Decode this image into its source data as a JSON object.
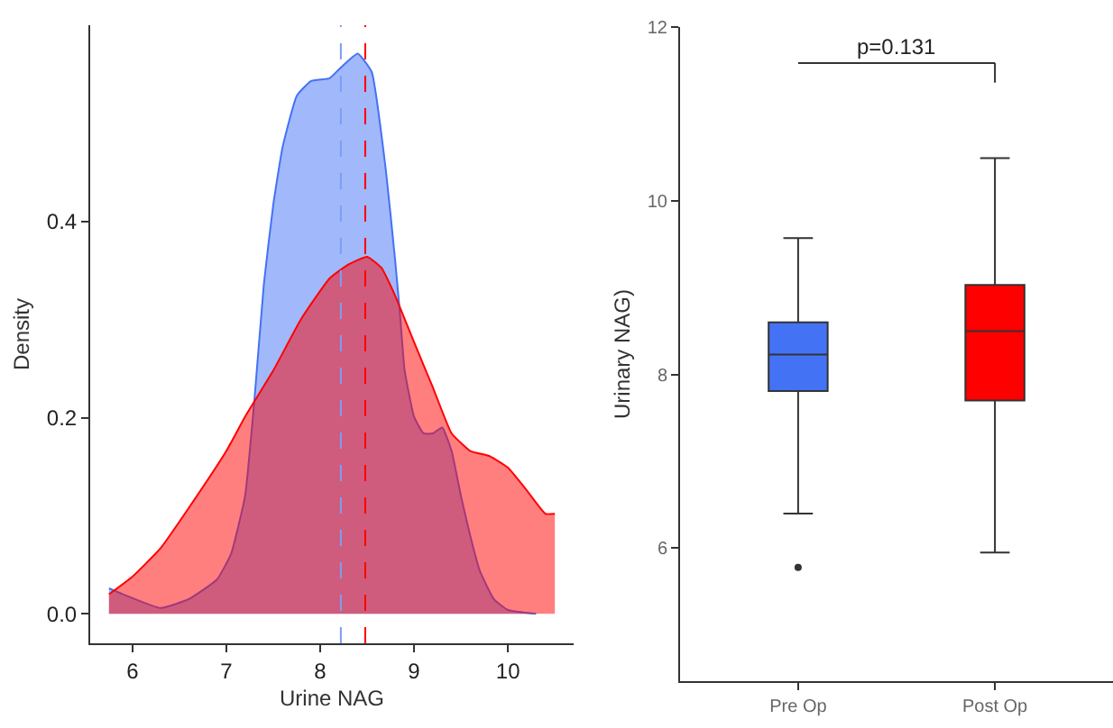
{
  "chart_data": [
    {
      "type": "area",
      "xlabel": "Urine NAG",
      "ylabel": "Density",
      "xlim": [
        5.55,
        10.7
      ],
      "xticks": [
        6,
        7,
        8,
        9,
        10
      ],
      "ylim": [
        -0.03,
        0.6
      ],
      "yticks": [
        {
          "value": 0,
          "label": "0.0"
        },
        0.2,
        0.4
      ],
      "series": [
        {
          "color": "#4472f5",
          "x": [
            5.75,
            5.9,
            6.3,
            6.6,
            6.9,
            7.05,
            7.2,
            7.3,
            7.4,
            7.5,
            7.6,
            7.75,
            7.9,
            8.1,
            8.2,
            8.4,
            8.55,
            8.7,
            8.8,
            8.85,
            8.9,
            9.0,
            9.1,
            9.2,
            9.3,
            9.4,
            9.5,
            9.6,
            9.7,
            9.85,
            10.0,
            10.3
          ],
          "values": [
            0.026,
            0.02,
            0.006,
            0.015,
            0.035,
            0.061,
            0.12,
            0.219,
            0.336,
            0.417,
            0.476,
            0.528,
            0.543,
            0.546,
            0.555,
            0.571,
            0.552,
            0.452,
            0.359,
            0.306,
            0.248,
            0.201,
            0.184,
            0.184,
            0.19,
            0.166,
            0.12,
            0.079,
            0.044,
            0.015,
            0.004,
            0
          ]
        },
        {
          "color": "#ff0000",
          "x": [
            5.75,
            6.0,
            6.3,
            6.6,
            7.0,
            7.2,
            7.5,
            7.8,
            8.1,
            8.3,
            8.5,
            8.65,
            8.8,
            9.0,
            9.2,
            9.4,
            9.6,
            9.8,
            10.0,
            10.2,
            10.4,
            10.5
          ],
          "values": [
            0.02,
            0.038,
            0.067,
            0.108,
            0.166,
            0.201,
            0.248,
            0.301,
            0.342,
            0.356,
            0.364,
            0.353,
            0.324,
            0.277,
            0.231,
            0.184,
            0.166,
            0.161,
            0.149,
            0.126,
            0.102,
            0.102
          ]
        }
      ],
      "ref_lines": [
        {
          "axis": "x",
          "value": 8.22,
          "color": "#7b9ff5",
          "line_style": "dashed"
        },
        {
          "axis": "x",
          "value": 8.48,
          "color": "#ff0000",
          "line_style": "dashed"
        }
      ]
    },
    {
      "type": "box",
      "ylabel": "Urinary NAG)",
      "categories": [
        "Pre Op",
        "Post Op"
      ],
      "ylim": [
        4.47,
        12
      ],
      "yticks": [
        6,
        8,
        10,
        12
      ],
      "colors": [
        "#4472f5",
        "#ff0000"
      ],
      "boxes": [
        {
          "low": 6.4,
          "q1": 7.81,
          "median": 8.23,
          "q3": 8.6,
          "high": 9.57,
          "outliers": [
            5.78
          ]
        },
        {
          "low": 5.95,
          "q1": 7.7,
          "median": 8.5,
          "q3": 9.03,
          "high": 10.49
        }
      ],
      "annotations": [
        "p=0.131"
      ]
    }
  ]
}
